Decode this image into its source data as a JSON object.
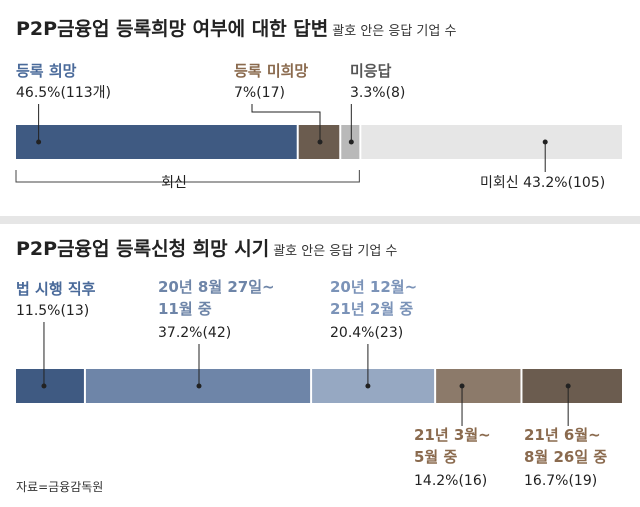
{
  "colors": {
    "blue_dark": "#3f5a82",
    "blue_mid": "#6e85a8",
    "blue_light": "#96a8c2",
    "brown_light": "#8c7a6a",
    "brown_dark": "#6b5c4f",
    "gray_light": "#b9b9b9",
    "gray_pale": "#e6e6e6",
    "label_blue": "#4a6a9a",
    "label_brown": "#8a6a4e",
    "label_gray": "#555555"
  },
  "chart_data": [
    {
      "type": "bar",
      "orientation": "horizontal-stacked",
      "title": "P2P금융업 등록희망 여부에 대한 답변",
      "subtitle": "괄호 안은 응답 기업 수",
      "unit": "%",
      "segments": [
        {
          "name": "등록 희망",
          "value": 46.5,
          "count": 113,
          "value_label": "46.5%(113개)",
          "color": "#3f5a82",
          "label_color": "#4a6a9a"
        },
        {
          "name": "등록 미희망",
          "value": 7,
          "count": 17,
          "value_label": "7%(17)",
          "color": "#6b5c4f",
          "label_color": "#8a6a4e"
        },
        {
          "name": "미응답",
          "value": 3.3,
          "count": 8,
          "value_label": "3.3%(8)",
          "color": "#b9b9b9",
          "label_color": "#555555"
        },
        {
          "name": "미회신",
          "value": 43.2,
          "count": 105,
          "value_label": "미회신 43.2%(105)",
          "color": "#e6e6e6",
          "label_color": "#222222"
        }
      ],
      "bracket_label": "회신"
    },
    {
      "type": "bar",
      "orientation": "horizontal-stacked",
      "title": "P2P금융업 등록신청 희망 시기",
      "subtitle": "괄호 안은 응답 기업 수",
      "unit": "%",
      "segments": [
        {
          "name": "법 시행 직후",
          "value": 11.5,
          "count": 13,
          "value_label": "11.5%(13)",
          "color": "#3f5a82",
          "label_color": "#4a6a9a"
        },
        {
          "name": "20년 8월 27일~ 11월 중",
          "value": 37.2,
          "count": 42,
          "value_label": "37.2%(42)",
          "color": "#6e85a8",
          "label_color": "#6e85a8"
        },
        {
          "name": "20년 12월~ 21년 2월 중",
          "value": 20.4,
          "count": 23,
          "value_label": "20.4%(23)",
          "color": "#96a8c2",
          "label_color": "#7b93b8"
        },
        {
          "name": "21년 3월~ 5월 중",
          "value": 14.2,
          "count": 16,
          "value_label": "14.2%(16)",
          "color": "#8c7a6a",
          "label_color": "#8a6a4e"
        },
        {
          "name": "21년 6월~ 8월 26일 중",
          "value": 16.7,
          "count": 19,
          "value_label": "16.7%(19)",
          "color": "#6b5c4f",
          "label_color": "#8a6a4e"
        }
      ]
    }
  ],
  "panel1": {
    "title": "P2P금융업 등록희망 여부에 대한 답변",
    "subtitle": "괄호 안은 응답 기업 수",
    "labels": {
      "seg0_name": "등록 희망",
      "seg0_value": "46.5%(113개)",
      "seg1_name": "등록 미희망",
      "seg1_value": "7%(17)",
      "seg2_name": "미응답",
      "seg2_value": "3.3%(8)",
      "seg3_value": "미회신 43.2%(105)",
      "bracket": "회신"
    }
  },
  "panel2": {
    "title": "P2P금융업 등록신청 희망 시기",
    "subtitle": "괄호 안은 응답 기업 수",
    "labels": {
      "seg0_name": "법 시행 직후",
      "seg0_value": "11.5%(13)",
      "seg1_name_l1": "20년 8월 27일~",
      "seg1_name_l2": "11월 중",
      "seg1_value": "37.2%(42)",
      "seg2_name_l1": "20년 12월~",
      "seg2_name_l2": "21년 2월 중",
      "seg2_value": "20.4%(23)",
      "seg3_name_l1": "21년 3월~",
      "seg3_name_l2": "5월 중",
      "seg3_value": "14.2%(16)",
      "seg4_name_l1": "21년 6월~",
      "seg4_name_l2": "8월 26일 중",
      "seg4_value": "16.7%(19)"
    }
  },
  "source": "자료=금융감독원"
}
